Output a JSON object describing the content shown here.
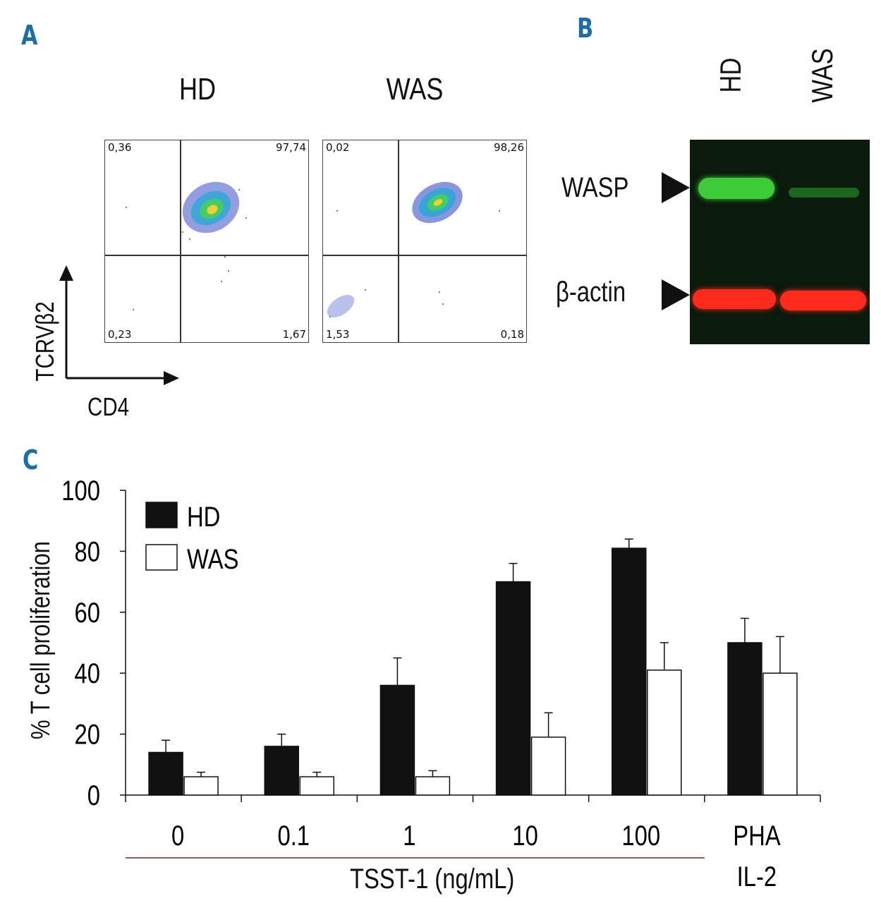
{
  "panel_a": {
    "letter": "A",
    "titles": [
      "HD",
      "WAS"
    ],
    "plots": [
      {
        "quadrants": {
          "ul": "0,36",
          "ur": "97,74",
          "ll": "0,23",
          "lr": "1,67"
        }
      },
      {
        "quadrants": {
          "ul": "0,02",
          "ur": "98,26",
          "ll": "1,53",
          "lr": "0,18"
        }
      }
    ],
    "y_axis_label": "TCRVβ2",
    "x_axis_label": "CD4"
  },
  "panel_b": {
    "letter": "B",
    "lanes": [
      "HD",
      "WAS"
    ],
    "bands": [
      "WASP",
      "β-actin"
    ],
    "colors": {
      "wasp": "#3dcc38",
      "actin": "#ff2a1e",
      "background": "#0a1a0c"
    }
  },
  "panel_c": {
    "letter": "C",
    "chart_data": {
      "type": "bar",
      "categories": [
        "0",
        "0.1",
        "1",
        "10",
        "100",
        "PHA IL-2"
      ],
      "category_labels": [
        [
          "0"
        ],
        [
          "0.1"
        ],
        [
          "1"
        ],
        [
          "10"
        ],
        [
          "100"
        ],
        [
          "PHA",
          "IL-2"
        ]
      ],
      "series": [
        {
          "name": "HD",
          "color": "#111111",
          "values": [
            14,
            16,
            36,
            70,
            81,
            50
          ],
          "errors": [
            4,
            4,
            9,
            6,
            3,
            8
          ]
        },
        {
          "name": "WAS",
          "color": "#ffffff",
          "values": [
            6,
            6,
            6,
            19,
            41,
            40
          ],
          "errors": [
            1.5,
            1.5,
            2,
            8,
            9,
            12
          ]
        }
      ],
      "ylabel": "% T cell proliferation",
      "xlabel": "TSST-1 (ng/mL)",
      "ylim": [
        0,
        100
      ],
      "yticks": [
        "0",
        "20",
        "40",
        "60",
        "80",
        "100"
      ],
      "legend_position": "top-left"
    }
  }
}
